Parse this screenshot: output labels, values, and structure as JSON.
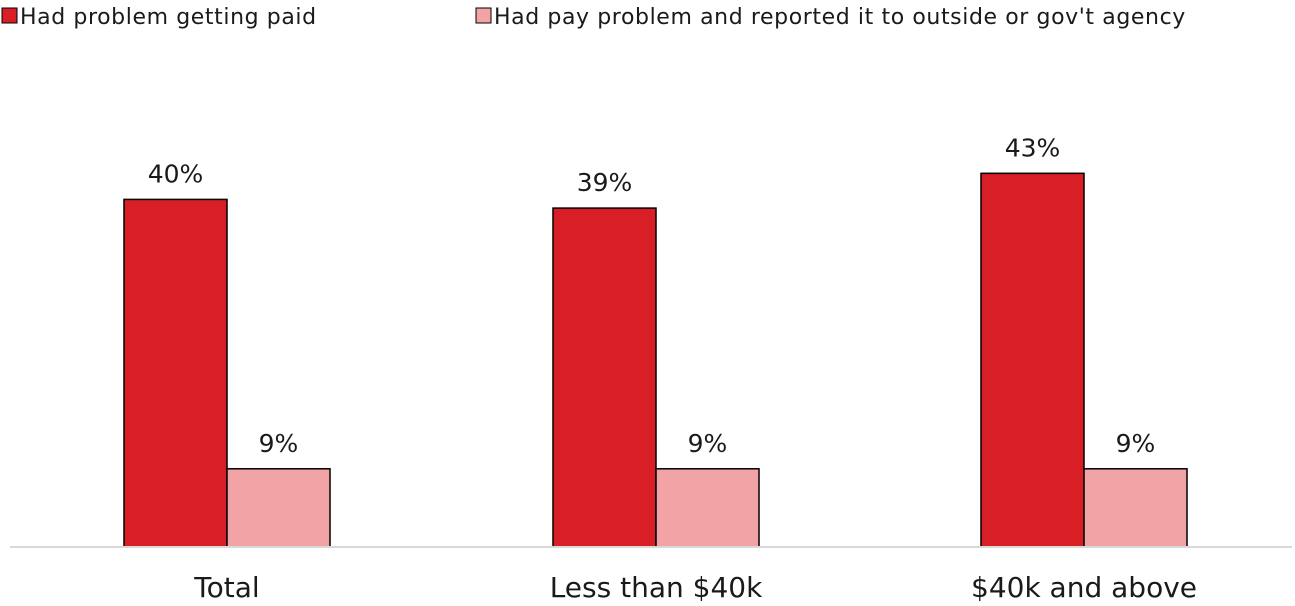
{
  "chart_data": {
    "type": "bar",
    "title": "",
    "xlabel": "",
    "ylabel": "",
    "categories": [
      "Total",
      "Less than $40k",
      "$40k and above"
    ],
    "series": [
      {
        "name": "Had problem getting paid",
        "color": "#d81f26",
        "values": [
          40,
          39,
          43
        ],
        "labels": [
          "40%",
          "39%",
          "43%"
        ]
      },
      {
        "name": "Had pay problem and reported it to outside or gov't agency",
        "color": "#f2a3a6",
        "values": [
          9,
          9,
          9
        ],
        "labels": [
          "9%",
          "9%",
          "9%"
        ]
      }
    ],
    "ylim": [
      0,
      50
    ],
    "grid": false,
    "legend_position": "top"
  }
}
